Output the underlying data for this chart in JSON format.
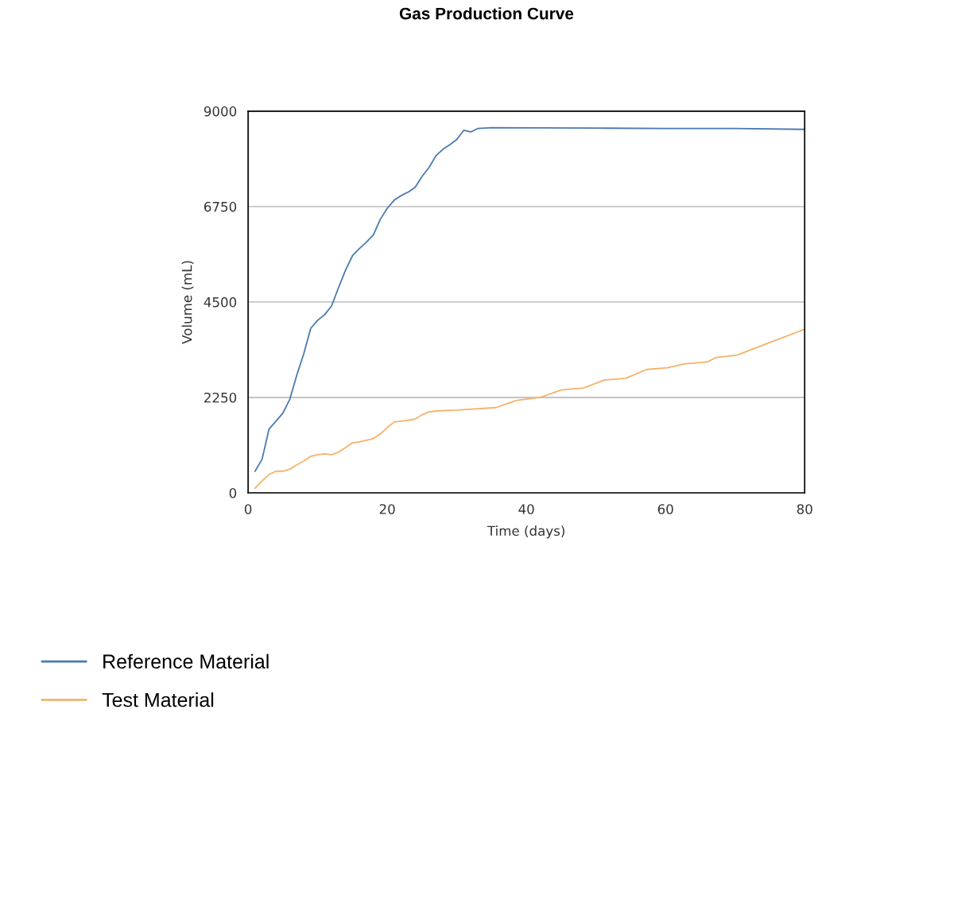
{
  "chart_data": {
    "type": "line",
    "title": "Gas Production Curve",
    "xlabel": "Time (days)",
    "ylabel": "Volume (mL)",
    "xlim": [
      0,
      80
    ],
    "xticks": [
      0,
      20,
      40,
      60,
      80
    ],
    "ylim": [
      0,
      9000
    ],
    "yticks": [
      0,
      2250,
      4500,
      6750,
      9000
    ],
    "grid": "y",
    "legend": "bottom left",
    "marker": "none",
    "line_style": "solid",
    "series": [
      {
        "name": "Reference Material",
        "color": "#4a7ab0",
        "x": [
          1,
          2,
          3,
          4,
          5,
          6,
          7,
          8,
          9,
          10,
          11,
          12,
          13,
          14,
          15,
          16,
          17,
          18,
          19,
          20,
          21,
          22,
          23,
          24,
          25,
          26,
          27,
          28,
          29,
          30,
          31,
          32,
          33,
          35,
          50,
          60,
          70,
          80
        ],
        "values": [
          510,
          790,
          1500,
          1690,
          1880,
          2210,
          2780,
          3280,
          3880,
          4070,
          4200,
          4410,
          4840,
          5250,
          5590,
          5760,
          5910,
          6080,
          6450,
          6710,
          6900,
          7010,
          7090,
          7200,
          7460,
          7670,
          7950,
          8100,
          8210,
          8330,
          8550,
          8510,
          8590,
          8610,
          8600,
          8590,
          8590,
          8570
        ]
      },
      {
        "name": "Test Material",
        "color": "#f5b26b",
        "x": [
          1,
          2,
          3,
          4,
          5,
          6,
          7,
          8,
          9,
          10,
          11,
          12,
          13,
          14,
          15,
          16,
          17,
          18,
          19,
          20,
          21,
          22,
          23,
          24,
          25,
          26,
          27,
          30,
          35.6,
          38.6,
          42,
          45.1,
          48.2,
          51.2,
          54.3,
          57.3,
          60.3,
          62.6,
          66.1,
          67.2,
          70.3,
          75.2,
          80
        ],
        "values": [
          110,
          280,
          430,
          510,
          510,
          560,
          660,
          750,
          860,
          900,
          920,
          900,
          960,
          1070,
          1180,
          1200,
          1240,
          1280,
          1390,
          1540,
          1670,
          1690,
          1710,
          1740,
          1840,
          1910,
          1930,
          1950,
          2010,
          2180,
          2250,
          2430,
          2470,
          2660,
          2700,
          2910,
          2950,
          3040,
          3090,
          3190,
          3250,
          3560,
          3860
        ]
      }
    ]
  }
}
